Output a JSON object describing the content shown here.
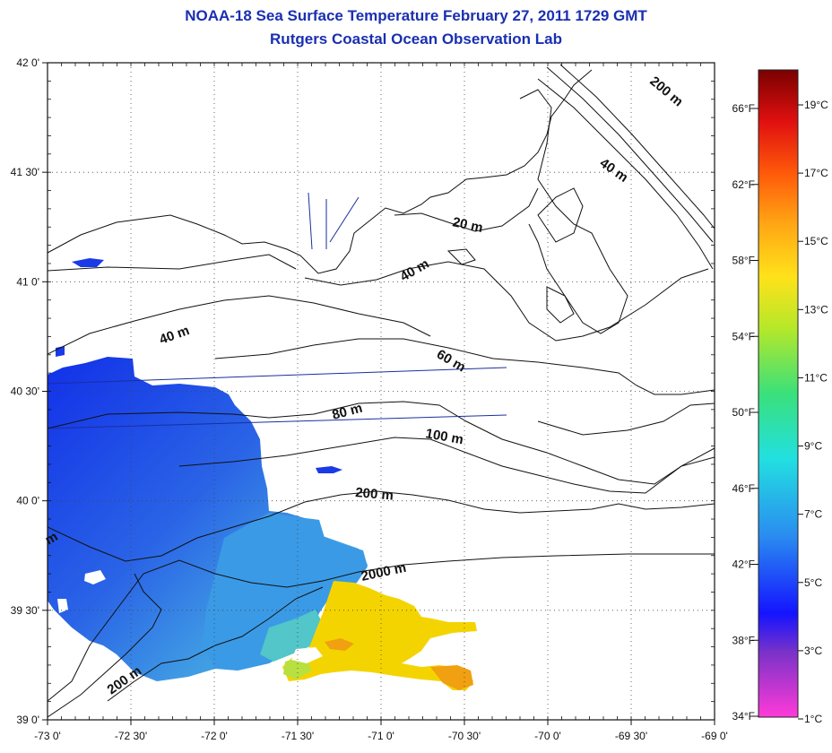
{
  "title": "NOAA-18 Sea Surface Temperature February 27, 2011 1729 GMT",
  "subtitle": "Rutgers Coastal Ocean Observation Lab",
  "lat_labels": [
    "42 0'",
    "41 30'",
    "41 0'",
    "40 30'",
    "40 0'",
    "39 30'",
    "39 0'"
  ],
  "lon_labels": [
    "-73 0'",
    "-72 30'",
    "-72 0'",
    "-71 30'",
    "-71 0'",
    "-70 30'",
    "-70 0'",
    "-69 30'",
    "-69 0'"
  ],
  "contour_labels": [
    "200 m",
    "40 m",
    "20 m",
    "40 m",
    "40 m",
    "60 m",
    "80 m",
    "100 m",
    "200 m",
    "2000 m",
    "200 m",
    "m"
  ],
  "colorbar": {
    "fahrenheit": [
      "66°F",
      "62°F",
      "58°F",
      "54°F",
      "50°F",
      "46°F",
      "42°F",
      "38°F",
      "34°F"
    ],
    "celsius": [
      "19°C",
      "17°C",
      "15°C",
      "13°C",
      "11°C",
      "9°C",
      "7°C",
      "5°C",
      "3°C",
      "1°C"
    ]
  },
  "colors": {
    "title": "#1a2fb0",
    "cold_sst": "#1a46e0",
    "mid_sst": "#2f8fe0",
    "warm_sst": "#f4d400"
  }
}
